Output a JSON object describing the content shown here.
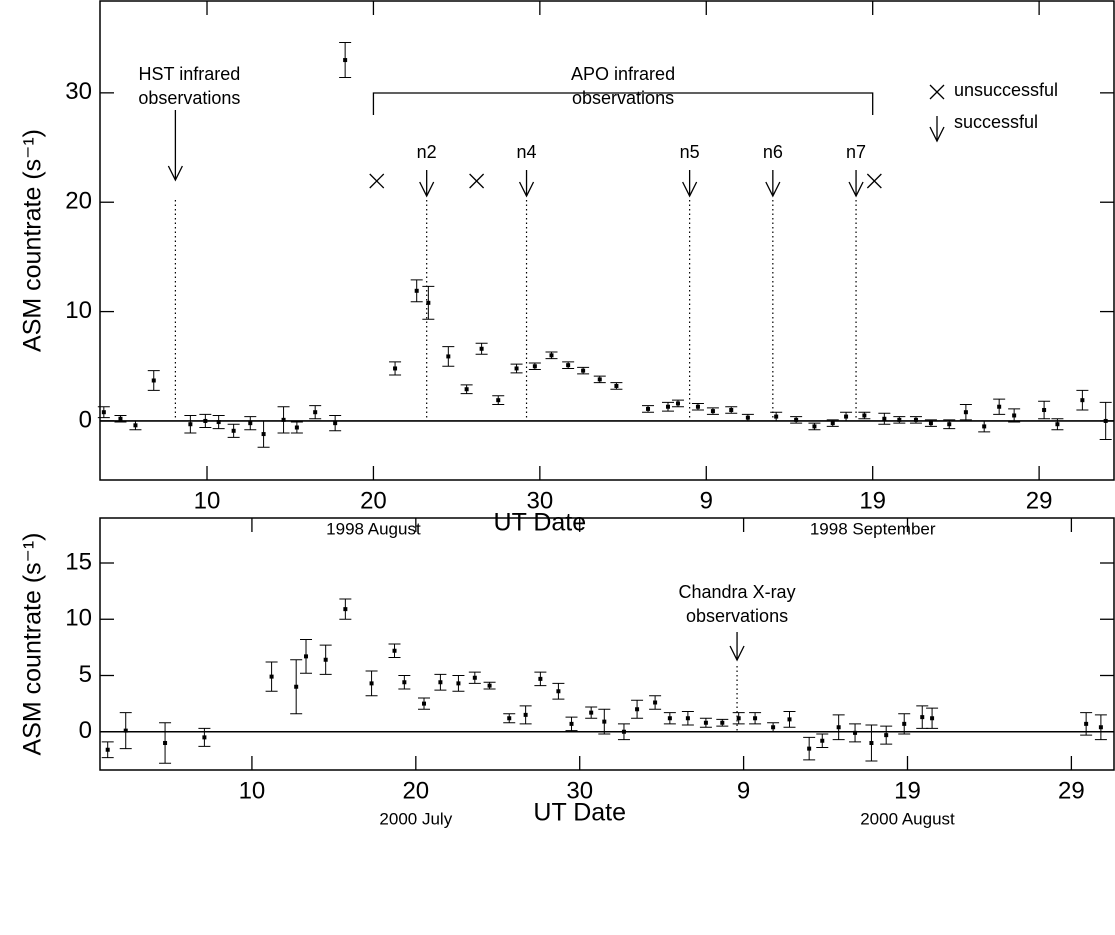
{
  "chart_data": [
    {
      "type": "scatter",
      "ylabel": "ASM countrate (s⁻¹)",
      "xlabel": "UT Date",
      "period_labels": [
        {
          "text": "1998 August",
          "x": 20
        },
        {
          "text": "1998 September",
          "x": 50
        }
      ],
      "xlim": [
        3.57,
        64.5
      ],
      "ylim": [
        -5.4,
        38.4
      ],
      "xticks": [
        10,
        20,
        30,
        {
          "value": 40,
          "label": "9"
        },
        {
          "value": 50,
          "label": "19"
        },
        {
          "value": 60,
          "label": "29"
        }
      ],
      "yticks": [
        0,
        10,
        20,
        30
      ],
      "x": [
        3.8,
        4.8,
        5.7,
        6.8,
        9.0,
        9.9,
        10.7,
        11.6,
        12.6,
        13.4,
        14.6,
        15.4,
        16.5,
        17.7,
        18.3,
        21.3,
        22.6,
        23.3,
        24.5,
        25.6,
        26.5,
        27.5,
        28.6,
        29.7,
        30.7,
        31.7,
        32.6,
        33.6,
        34.6,
        36.5,
        37.7,
        38.3,
        39.5,
        40.4,
        41.5,
        42.5,
        44.2,
        45.4,
        46.5,
        47.6,
        48.4,
        49.5,
        50.7,
        51.6,
        52.6,
        53.5,
        54.6,
        55.6,
        56.7,
        57.6,
        58.5,
        60.3,
        61.1,
        62.6,
        64.0
      ],
      "values": [
        0.8,
        0.2,
        -0.4,
        3.7,
        -0.3,
        0.0,
        -0.1,
        -0.9,
        -0.2,
        -1.2,
        0.1,
        -0.6,
        0.8,
        -0.2,
        33.0,
        4.8,
        11.9,
        10.8,
        5.9,
        2.9,
        6.6,
        1.9,
        4.8,
        5.0,
        6.0,
        5.1,
        4.6,
        3.8,
        3.2,
        1.1,
        1.3,
        1.6,
        1.3,
        0.9,
        1.0,
        0.3,
        0.4,
        0.1,
        -0.5,
        -0.2,
        0.4,
        0.5,
        0.2,
        0.1,
        0.1,
        -0.2,
        -0.3,
        0.8,
        -0.5,
        1.3,
        0.5,
        1.0,
        -0.3,
        1.9,
        0.0
      ],
      "errors": [
        0.5,
        0.3,
        0.4,
        0.9,
        0.8,
        0.6,
        0.6,
        0.6,
        0.6,
        1.2,
        1.2,
        0.5,
        0.6,
        0.7,
        1.6,
        0.6,
        1.0,
        1.5,
        0.9,
        0.4,
        0.5,
        0.4,
        0.4,
        0.3,
        0.3,
        0.3,
        0.3,
        0.3,
        0.3,
        0.3,
        0.4,
        0.3,
        0.3,
        0.3,
        0.3,
        0.3,
        0.4,
        0.3,
        0.3,
        0.3,
        0.4,
        0.3,
        0.5,
        0.3,
        0.3,
        0.3,
        0.4,
        0.7,
        0.5,
        0.7,
        0.6,
        0.8,
        0.5,
        0.9,
        1.7
      ],
      "annotations": [
        {
          "lines": [
            "HST infrared",
            "observations"
          ],
          "x": 8.1
        }
      ],
      "bracket": {
        "lines": [
          "APO infrared",
          "observations"
        ],
        "x_range": [
          20,
          50
        ]
      },
      "successful": [
        {
          "label": "n2",
          "x": 23.2
        },
        {
          "label": "n4",
          "x": 29.2
        },
        {
          "label": "n5",
          "x": 39.0
        },
        {
          "label": "n6",
          "x": 44.0
        },
        {
          "label": "n7",
          "x": 49.0
        }
      ],
      "unsuccessful": [
        20.2,
        26.2,
        50.1
      ],
      "legend": {
        "unsuccessful": "unsuccessful",
        "successful": "successful"
      }
    },
    {
      "type": "scatter",
      "ylabel": "ASM countrate (s⁻¹)",
      "xlabel": "UT Date",
      "period_labels": [
        {
          "text": "2000 July",
          "x": 20
        },
        {
          "text": "2000 August",
          "x": 50
        }
      ],
      "xlim": [
        0.73,
        62.6
      ],
      "ylim": [
        -3.4,
        19.0
      ],
      "xticks": [
        10,
        20,
        30,
        {
          "value": 40,
          "label": "9"
        },
        {
          "value": 50,
          "label": "19"
        },
        {
          "value": 60,
          "label": "29"
        }
      ],
      "yticks": [
        0,
        5,
        10,
        15
      ],
      "x": [
        1.2,
        2.3,
        4.7,
        7.1,
        11.2,
        12.7,
        13.3,
        14.5,
        15.7,
        17.3,
        18.7,
        19.3,
        20.5,
        21.5,
        22.6,
        23.6,
        24.5,
        25.7,
        26.7,
        27.6,
        28.7,
        29.5,
        30.7,
        31.5,
        32.7,
        33.5,
        34.6,
        35.5,
        36.6,
        37.7,
        38.7,
        39.7,
        40.7,
        41.8,
        42.8,
        44.0,
        44.8,
        45.8,
        46.8,
        47.8,
        48.7,
        49.8,
        50.9,
        51.5,
        60.9,
        61.8
      ],
      "values": [
        -1.6,
        0.1,
        -1.0,
        -0.5,
        4.9,
        4.0,
        6.7,
        6.4,
        10.9,
        4.3,
        7.2,
        4.4,
        2.5,
        4.4,
        4.3,
        4.8,
        4.1,
        1.2,
        1.5,
        4.7,
        3.6,
        0.7,
        1.7,
        0.9,
        0.0,
        2.0,
        2.6,
        1.2,
        1.2,
        0.8,
        0.8,
        1.2,
        1.2,
        0.4,
        1.1,
        -1.5,
        -0.8,
        0.4,
        -0.1,
        -1.0,
        -0.3,
        0.7,
        1.3,
        1.2,
        0.7,
        0.4
      ],
      "errors": [
        0.7,
        1.6,
        1.8,
        0.8,
        1.3,
        2.4,
        1.5,
        1.3,
        0.9,
        1.1,
        0.6,
        0.6,
        0.5,
        0.7,
        0.7,
        0.5,
        0.3,
        0.4,
        0.8,
        0.6,
        0.7,
        0.6,
        0.5,
        1.1,
        0.7,
        0.8,
        0.6,
        0.5,
        0.6,
        0.4,
        0.3,
        0.5,
        0.5,
        0.4,
        0.7,
        1.0,
        0.6,
        1.1,
        0.8,
        1.6,
        0.8,
        0.9,
        1.0,
        0.9,
        1.0,
        1.1
      ],
      "annotations": [
        {
          "lines": [
            "Chandra X-ray",
            "observations"
          ],
          "x": 39.6
        }
      ]
    }
  ]
}
